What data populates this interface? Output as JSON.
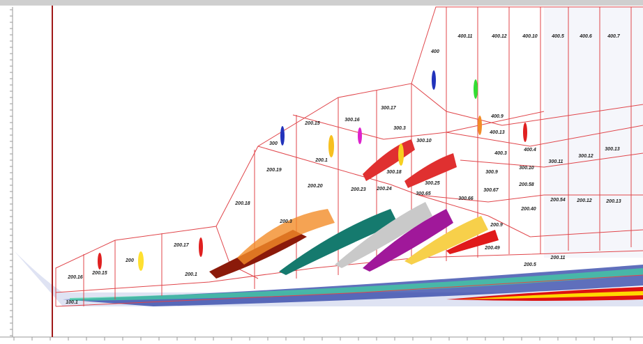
{
  "regions": [
    "200.16",
    "200.15",
    "200",
    "200.17",
    "200.1",
    "200.18",
    "200.3",
    "200.19",
    "200.20",
    "300",
    "200.15",
    "300.16",
    "300.17",
    "300.3",
    "200.1",
    "200.23",
    "200.24",
    "300.10",
    "300.18",
    "400",
    "400.11",
    "400.12",
    "400.10",
    "400.5",
    "400.6",
    "400.7",
    "400.9",
    "400.13",
    "400.3",
    "400.4",
    "300.9",
    "300.10",
    "300.11",
    "300.12",
    "300.13",
    "300.25",
    "300.65",
    "300.66",
    "300.67",
    "200.58",
    "200.54",
    "200.12",
    "200.13",
    "200.40",
    "200.9",
    "200.49",
    "200.11",
    "200.5",
    "100.1"
  ]
}
